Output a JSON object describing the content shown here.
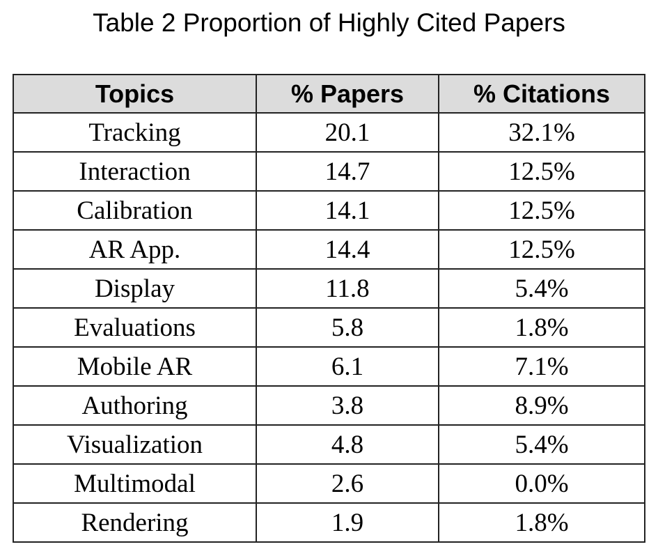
{
  "title": "Table 2 Proportion of Highly Cited Papers",
  "chart_data": {
    "type": "table",
    "title": "Table 2 Proportion of Highly Cited Papers",
    "columns": [
      "Topics",
      "% Papers",
      "% Citations"
    ],
    "rows": [
      [
        "Tracking",
        "20.1",
        "32.1%"
      ],
      [
        "Interaction",
        "14.7",
        "12.5%"
      ],
      [
        "Calibration",
        "14.1",
        "12.5%"
      ],
      [
        "AR App.",
        "14.4",
        "12.5%"
      ],
      [
        "Display",
        "11.8",
        "5.4%"
      ],
      [
        "Evaluations",
        "5.8",
        "1.8%"
      ],
      [
        "Mobile AR",
        "6.1",
        "7.1%"
      ],
      [
        "Authoring",
        "3.8",
        "8.9%"
      ],
      [
        "Visualization",
        "4.8",
        "5.4%"
      ],
      [
        "Multimodal",
        "2.6",
        "0.0%"
      ],
      [
        "Rendering",
        "1.9",
        "1.8%"
      ]
    ]
  },
  "colors": {
    "header_background": "#dcdcdc",
    "border": "#222222",
    "text": "#000000"
  }
}
